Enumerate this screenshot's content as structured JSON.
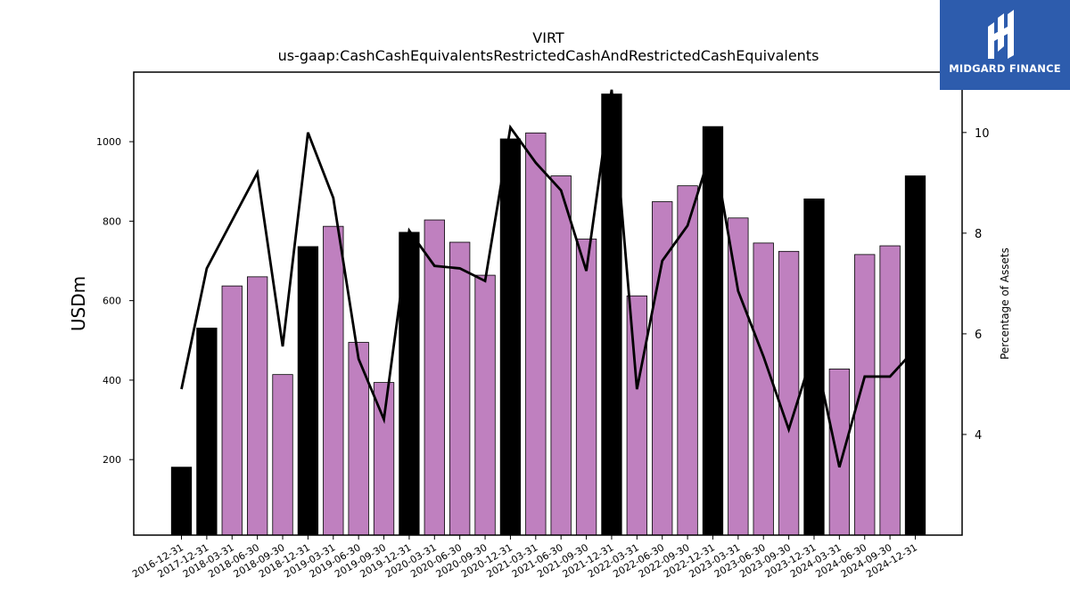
{
  "brand": {
    "name": "MIDGARD FINANCE",
    "background_color": "#2d5cad",
    "icon": "midgard-logo-icon"
  },
  "chart_data": {
    "type": "bar",
    "title": "VIRT",
    "subtitle": "us-gaap:CashCashEquivalentsRestrictedCashAndRestrictedCashEquivalents",
    "ylabel": "USDm",
    "y2label": "Percentage of Assets",
    "ylim": [
      10,
      1175
    ],
    "y2lim": [
      2.0,
      11.2
    ],
    "yticks": [
      200,
      400,
      600,
      800,
      1000
    ],
    "y2ticks": [
      4,
      6,
      8,
      10
    ],
    "grid": false,
    "categories": [
      "2016-12-31",
      "2017-12-31",
      "2018-03-31",
      "2018-06-30",
      "2018-09-30",
      "2018-12-31",
      "2019-03-31",
      "2019-06-30",
      "2019-09-30",
      "2019-12-31",
      "2020-03-31",
      "2020-06-30",
      "2020-09-30",
      "2020-12-31",
      "2021-03-31",
      "2021-06-30",
      "2021-09-30",
      "2021-12-31",
      "2022-03-31",
      "2022-06-30",
      "2022-09-30",
      "2022-12-31",
      "2023-03-31",
      "2023-06-30",
      "2023-09-30",
      "2023-12-31",
      "2024-03-31",
      "2024-06-30",
      "2024-09-30",
      "2024-12-31"
    ],
    "series": [
      {
        "type": "bar",
        "axis": "left",
        "values": [
          181,
          531,
          637,
          660,
          414,
          736,
          787,
          495,
          394,
          772,
          803,
          747,
          664,
          1007,
          1022,
          914,
          755,
          1120,
          612,
          849,
          889,
          1038,
          808,
          745,
          724,
          856,
          428,
          716,
          738,
          914
        ],
        "colors": [
          "#000000",
          "#000000",
          "#bf80bf",
          "#bf80bf",
          "#bf80bf",
          "#000000",
          "#bf80bf",
          "#bf80bf",
          "#bf80bf",
          "#000000",
          "#bf80bf",
          "#bf80bf",
          "#bf80bf",
          "#000000",
          "#bf80bf",
          "#bf80bf",
          "#bf80bf",
          "#000000",
          "#bf80bf",
          "#bf80bf",
          "#bf80bf",
          "#000000",
          "#bf80bf",
          "#bf80bf",
          "#bf80bf",
          "#000000",
          "#bf80bf",
          "#bf80bf",
          "#bf80bf",
          "#000000"
        ]
      },
      {
        "type": "line",
        "axis": "right",
        "color": "#000000",
        "values": [
          4.9,
          7.3,
          8.25,
          9.2,
          5.75,
          10.0,
          8.7,
          5.5,
          4.3,
          8.05,
          7.35,
          7.3,
          7.05,
          10.1,
          9.4,
          8.85,
          7.25,
          10.85,
          4.9,
          7.45,
          8.15,
          9.75,
          6.85,
          5.55,
          4.1,
          5.7,
          3.35,
          5.15,
          5.15,
          5.7
        ]
      }
    ],
    "colors": {
      "annual_bar": "#000000",
      "quarterly_bar": "#bf80bf",
      "line": "#000000"
    }
  }
}
